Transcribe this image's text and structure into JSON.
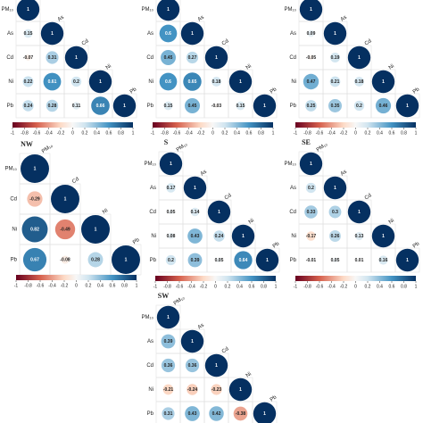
{
  "chart_data": [
    {
      "type": "corrplot",
      "variables": [
        "PM₁₀",
        "As",
        "Cd",
        "Ni",
        "Pb"
      ],
      "values": [
        [
          1
        ],
        [
          0.15,
          1
        ],
        [
          -0.07,
          0.31,
          1
        ],
        [
          0.22,
          0.61,
          0.2,
          1
        ],
        [
          0.24,
          0.28,
          0.11,
          0.66,
          1
        ]
      ],
      "clim": [
        -1,
        1
      ],
      "cticks": [
        -1,
        -0.8,
        -0.6,
        -0.4,
        -0.2,
        0,
        0.2,
        0.4,
        0.6,
        0.8,
        1
      ],
      "colorbar": true
    },
    {
      "type": "corrplot",
      "variables": [
        "PM₁₀",
        "As",
        "Cd",
        "Ni",
        "Pb"
      ],
      "values": [
        [
          1
        ],
        [
          0.6,
          1
        ],
        [
          0.45,
          0.27,
          1
        ],
        [
          0.6,
          0.65,
          0.18,
          1
        ],
        [
          0.15,
          0.45,
          -0.03,
          0.15,
          1
        ]
      ],
      "clim": [
        -1,
        1
      ],
      "cticks": [
        -1,
        -0.8,
        -0.6,
        -0.4,
        -0.2,
        0,
        0.2,
        0.4,
        0.6,
        0.8,
        1
      ],
      "colorbar": true
    },
    {
      "type": "corrplot",
      "variables": [
        "PM₁₀",
        "As",
        "Cd",
        "Ni",
        "Pb"
      ],
      "values": [
        [
          1
        ],
        [
          0.09,
          1
        ],
        [
          -0.05,
          0.19,
          1
        ],
        [
          0.47,
          0.21,
          0.18,
          1
        ],
        [
          0.25,
          0.35,
          0.2,
          0.46,
          1
        ]
      ],
      "clim": [
        -1,
        1
      ],
      "cticks": [
        -1,
        -0.8,
        -0.6,
        -0.4,
        -0.2,
        0,
        0.2,
        0.4,
        0.6,
        0.8,
        1
      ],
      "colorbar": true
    },
    {
      "type": "corrplot",
      "title": "NW",
      "variables": [
        "PM₁₀",
        "Cd",
        "Ni",
        "Pb"
      ],
      "values": [
        [
          1
        ],
        [
          -0.29,
          1
        ],
        [
          0.82,
          -0.49,
          1
        ],
        [
          0.67,
          -0.08,
          0.28,
          1
        ]
      ],
      "clim": [
        -1,
        1
      ],
      "cticks": [
        -1,
        -0.8,
        -0.6,
        -0.4,
        -0.2,
        0,
        0.2,
        0.4,
        0.6,
        0.8,
        1
      ],
      "colorbar": true
    },
    {
      "type": "corrplot",
      "title": "S",
      "variables": [
        "PM₁₀",
        "As",
        "Cd",
        "Ni",
        "Pb"
      ],
      "values": [
        [
          1
        ],
        [
          0.17,
          1
        ],
        [
          0.05,
          0.14,
          1
        ],
        [
          0.08,
          0.43,
          0.24,
          1
        ],
        [
          0.2,
          0.39,
          0.05,
          0.64,
          1
        ]
      ],
      "clim": [
        -1,
        1
      ],
      "cticks": [
        -1,
        -0.8,
        -0.6,
        -0.4,
        -0.2,
        0,
        0.2,
        0.4,
        0.6,
        0.8,
        1
      ],
      "colorbar": true
    },
    {
      "type": "corrplot",
      "title": "SE",
      "variables": [
        "PM₁₀",
        "As",
        "Cd",
        "Ni",
        "Pb"
      ],
      "values": [
        [
          1
        ],
        [
          0.2,
          1
        ],
        [
          0.33,
          0.3,
          1
        ],
        [
          -0.17,
          0.26,
          0.13,
          1
        ],
        [
          -0.01,
          0.05,
          0.01,
          0.16,
          1
        ]
      ],
      "clim": [
        -1,
        1
      ],
      "cticks": [
        -1,
        -0.8,
        -0.6,
        -0.4,
        -0.2,
        0,
        0.2,
        0.4,
        0.6,
        0.8,
        1
      ],
      "colorbar": true
    },
    {
      "type": "corrplot",
      "title": "SW",
      "variables": [
        "PM₁₀",
        "As",
        "Cd",
        "Ni",
        "Pb"
      ],
      "values": [
        [
          1
        ],
        [
          0.39,
          1
        ],
        [
          0.36,
          0.36,
          1
        ],
        [
          -0.21,
          -0.24,
          -0.23,
          1
        ],
        [
          0.31,
          0.43,
          0.42,
          -0.38,
          1
        ]
      ],
      "clim": [
        -1,
        1
      ],
      "colorbar": false
    }
  ]
}
